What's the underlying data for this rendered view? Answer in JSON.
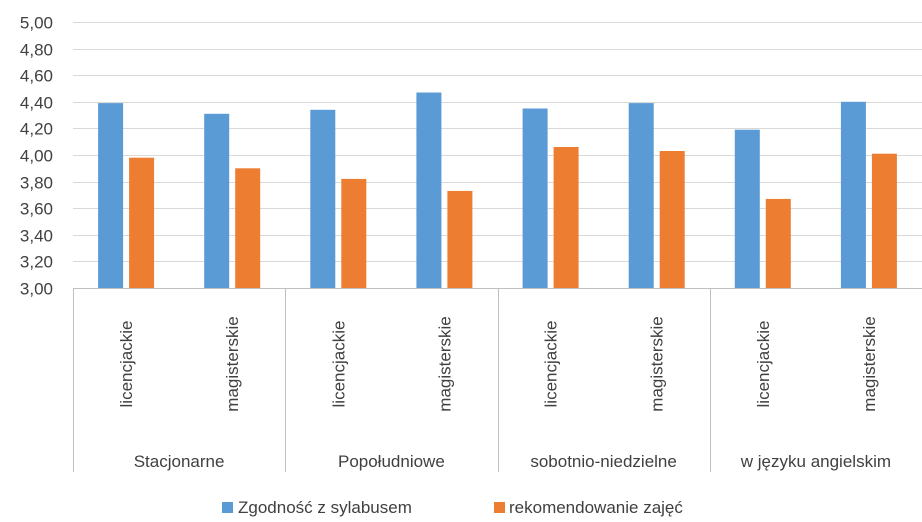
{
  "chart_data": {
    "type": "bar",
    "title": "",
    "xlabel": "",
    "ylabel": "",
    "ylim": [
      3.0,
      5.0
    ],
    "ytick_step": 0.2,
    "ytick_labels": [
      "3,00",
      "3,20",
      "3,40",
      "3,60",
      "3,80",
      "4,00",
      "4,20",
      "4,40",
      "4,60",
      "4,80",
      "5,00"
    ],
    "grid": true,
    "legend_position": "bottom",
    "groups": [
      "Stacjonarne",
      "Popołudniowe",
      "sobotnio-niedzielne",
      "w języku angielskim"
    ],
    "subcategories": [
      "licencjackie",
      "magisterskie"
    ],
    "categories": [
      "licencjackie",
      "magisterskie",
      "licencjackie",
      "magisterskie",
      "licencjackie",
      "magisterskie",
      "licencjackie",
      "magisterskie"
    ],
    "series": [
      {
        "name": "Zgodność z sylabusem",
        "color": "#5B9BD5",
        "values": [
          4.39,
          4.31,
          4.34,
          4.47,
          4.35,
          4.39,
          4.19,
          4.4
        ]
      },
      {
        "name": "rekomendowanie zajęć",
        "color": "#ED7D31",
        "values": [
          3.98,
          3.9,
          3.82,
          3.73,
          4.06,
          4.03,
          3.67,
          4.01
        ]
      }
    ]
  }
}
